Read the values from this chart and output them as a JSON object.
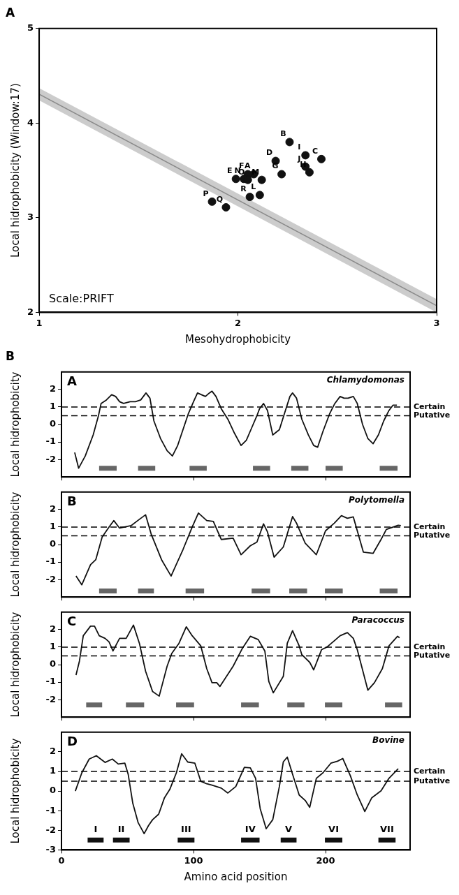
{
  "chart_data": [
    {
      "type": "scatter",
      "title": "A",
      "xlabel": "Mesohydrophobicity",
      "ylabel": "Local hidrophobicity (Window:17)",
      "xlim": [
        1,
        3
      ],
      "ylim": [
        2,
        5
      ],
      "xticks": [
        1,
        2,
        3
      ],
      "yticks": [
        2,
        3,
        4,
        5
      ],
      "series": [
        {
          "type": "scatter",
          "marker": "circle",
          "color": "#111111",
          "x": [
            2.08,
            2.26,
            2.42,
            2.19,
            1.99,
            2.05,
            2.22,
            2.36,
            2.34,
            2.34,
            2.11,
            2.12,
            2.03,
            2.05,
            1.87,
            1.94,
            2.06
          ],
          "values": [
            3.46,
            3.8,
            3.62,
            3.6,
            3.41,
            3.46,
            3.46,
            3.48,
            3.66,
            3.54,
            3.24,
            3.4,
            3.41,
            3.4,
            3.17,
            3.11,
            3.22
          ]
        },
        {
          "type": "line",
          "marker": "none",
          "color": "#8a8a8a",
          "x": [
            1,
            3
          ],
          "values": [
            4.305,
            2.07
          ],
          "lower": [
            4.24,
            2.0
          ],
          "upper": [
            4.37,
            2.14
          ]
        }
      ],
      "annotations": [
        "Scale:PRIFT",
        {
          "text": "A",
          "x": 2.08,
          "y": 3.46
        },
        {
          "text": "B",
          "x": 2.26,
          "y": 3.8
        },
        {
          "text": "C",
          "x": 2.42,
          "y": 3.62
        },
        {
          "text": "D",
          "x": 2.19,
          "y": 3.6
        },
        {
          "text": "E",
          "x": 1.99,
          "y": 3.41
        },
        {
          "text": "F",
          "x": 2.05,
          "y": 3.46
        },
        {
          "text": "G",
          "x": 2.22,
          "y": 3.46
        },
        {
          "text": "H",
          "x": 2.36,
          "y": 3.48
        },
        {
          "text": "I",
          "x": 2.34,
          "y": 3.66
        },
        {
          "text": "J",
          "x": 2.34,
          "y": 3.54
        },
        {
          "text": "L",
          "x": 2.11,
          "y": 3.24
        },
        {
          "text": "M",
          "x": 2.12,
          "y": 3.4
        },
        {
          "text": "N",
          "x": 2.03,
          "y": 3.41
        },
        {
          "text": "O",
          "x": 2.05,
          "y": 3.4
        },
        {
          "text": "P",
          "x": 1.87,
          "y": 3.17
        },
        {
          "text": "Q",
          "x": 1.94,
          "y": 3.11
        },
        {
          "text": "R",
          "x": 2.06,
          "y": 3.22
        }
      ]
    },
    {
      "type": "line",
      "title": "A",
      "subtitle": "Chlamydomonas",
      "ylabel": "Local hidrophobicity",
      "annotations": [
        "B"
      ],
      "xlim": [
        0,
        264
      ],
      "ylim": [
        -3,
        3
      ],
      "xticks": [
        0,
        100,
        200
      ],
      "yticks": [
        -2,
        -1,
        0,
        1,
        2
      ],
      "tick_labels": "y",
      "series": [
        {
          "color": "#111111",
          "x": [
            10,
            13,
            18,
            24,
            28,
            30,
            34,
            38,
            41,
            44,
            47,
            52,
            56,
            60,
            64,
            67,
            70,
            75,
            80,
            84,
            88,
            92,
            96,
            100,
            103,
            106,
            109,
            112,
            114,
            117,
            121,
            126,
            131,
            136,
            140,
            144,
            148,
            150,
            153,
            156,
            160,
            165,
            170,
            173,
            175,
            178,
            182,
            187,
            191,
            194,
            198,
            203,
            207,
            211,
            214,
            217,
            221,
            224,
            228,
            232,
            236,
            240,
            244,
            248,
            251,
            254
          ],
          "values": [
            -1.6,
            -2.5,
            -1.8,
            -0.6,
            0.5,
            1.2,
            1.4,
            1.7,
            1.6,
            1.3,
            1.2,
            1.3,
            1.3,
            1.4,
            1.8,
            1.5,
            0.2,
            -0.8,
            -1.5,
            -1.8,
            -1.2,
            -0.3,
            0.6,
            1.3,
            1.8,
            1.7,
            1.6,
            1.8,
            1.9,
            1.6,
            0.9,
            0.3,
            -0.5,
            -1.2,
            -0.9,
            -0.2,
            0.5,
            0.9,
            1.2,
            0.8,
            -0.6,
            -0.3,
            0.9,
            1.6,
            1.8,
            1.5,
            0.3,
            -0.6,
            -1.2,
            -1.3,
            -0.4,
            0.6,
            1.2,
            1.6,
            1.5,
            1.5,
            1.6,
            1.2,
            0,
            -0.8,
            -1.1,
            -0.6,
            0.2,
            0.8,
            1.1,
            1.1
          ]
        },
        {
          "color": "#666666",
          "x": [
            28.5,
            41.8,
            50,
            58,
            71,
            84,
            97,
            110,
            127,
            145,
            158,
            166,
            174,
            187,
            193,
            200,
            213,
            227,
            241,
            254.5
          ],
          "values": [
            -2.5,
            -2.5,
            null,
            -2.5,
            -2.5,
            null,
            -2.5,
            -2.5,
            null,
            -2.5,
            -2.5,
            null,
            -2.5,
            -2.5,
            null,
            -2.5,
            -2.5,
            null,
            -2.5,
            -2.5
          ]
        }
      ],
      "ref_lines": [
        {
          "axis": "y",
          "value": 1,
          "label": "Certain",
          "line_style": "dashed"
        },
        {
          "axis": "y",
          "value": 0.5,
          "label": "Putative",
          "line_style": "dashed"
        }
      ]
    },
    {
      "type": "line",
      "title": "B",
      "subtitle": "Polytomella",
      "ylabel": "Local hidrophobicity",
      "xlim": [
        0,
        264
      ],
      "ylim": [
        -3,
        3
      ],
      "xticks": [
        0,
        100,
        200
      ],
      "yticks": [
        -2,
        -1,
        0,
        1,
        2
      ],
      "tick_labels": "y",
      "series": [
        {
          "color": "#111111",
          "x": [
            11,
            15.4,
            22,
            26,
            30.8,
            36,
            39.6,
            44,
            52.7,
            59,
            63.7,
            68,
            76,
            83,
            92,
            99,
            103.7,
            110,
            115,
            121,
            130,
            136,
            143,
            148,
            153,
            156,
            161,
            168,
            175,
            178,
            184.6,
            193,
            200,
            206.6,
            212,
            216.5,
            221,
            228.6,
            236,
            242,
            246,
            255,
            257
          ],
          "values": [
            -1.8,
            -2.3,
            -1.15,
            -0.86,
            0.43,
            1.0,
            1.37,
            0.94,
            1.08,
            1.44,
            1.7,
            0.58,
            -0.9,
            -1.8,
            -0.29,
            1.0,
            1.8,
            1.37,
            1.32,
            0.29,
            0.36,
            -0.58,
            -0.07,
            0.14,
            1.18,
            0.72,
            -0.72,
            -0.14,
            1.6,
            1.22,
            0.07,
            -0.58,
            0.79,
            1.22,
            1.65,
            1.5,
            1.58,
            -0.43,
            -0.5,
            0.29,
            0.86,
            1.1,
            1.08
          ]
        },
        {
          "color": "#666666",
          "x": [
            28.5,
            41.8,
            50,
            58,
            70,
            82,
            94,
            108,
            126,
            144,
            158,
            165,
            172.5,
            186,
            193,
            199.5,
            213,
            227,
            241,
            254.5
          ],
          "values": [
            -2.65,
            -2.65,
            null,
            -2.65,
            -2.65,
            null,
            -2.65,
            -2.65,
            null,
            -2.65,
            -2.65,
            null,
            -2.65,
            -2.65,
            null,
            -2.65,
            -2.65,
            null,
            -2.65,
            -2.65
          ]
        }
      ],
      "ref_lines": [
        {
          "axis": "y",
          "value": 1,
          "label": "Certain",
          "line_style": "dashed"
        },
        {
          "axis": "y",
          "value": 0.5,
          "label": "Putative",
          "line_style": "dashed"
        }
      ]
    },
    {
      "type": "line",
      "title": "C",
      "subtitle": "Paracoccus",
      "ylabel": "Local hidrophobicity",
      "xlim": [
        0,
        264
      ],
      "ylim": [
        -3,
        3
      ],
      "xticks": [
        0,
        100,
        200
      ],
      "yticks": [
        -2,
        -1,
        0,
        1,
        2
      ],
      "tick_labels": "y",
      "series": [
        {
          "color": "#111111",
          "x": [
            11,
            13.6,
            16.5,
            22,
            25,
            28.6,
            33,
            36,
            39,
            44,
            49,
            54.5,
            59,
            63.7,
            69,
            74,
            80,
            83.5,
            89,
            94.5,
            99,
            105.5,
            110,
            114,
            117.6,
            120,
            130,
            137,
            143,
            149,
            154,
            157,
            160.4,
            168,
            171,
            175,
            180,
            182,
            188,
            191,
            197,
            201,
            206.6,
            211,
            216.5,
            221,
            224,
            232,
            237,
            243,
            248,
            254.5,
            256
          ],
          "values": [
            -0.6,
            0.2,
            1.65,
            2.2,
            2.2,
            1.65,
            1.5,
            1.3,
            0.78,
            1.5,
            1.5,
            2.26,
            1.22,
            -0.38,
            -1.54,
            -1.8,
            -0.09,
            0.64,
            1.22,
            2.16,
            1.65,
            1.07,
            -0.23,
            -1.03,
            -1.03,
            -1.25,
            -0.09,
            0.93,
            1.62,
            1.43,
            0.78,
            -0.96,
            -1.61,
            -0.67,
            1.22,
            1.94,
            1.07,
            0.57,
            0.13,
            -0.3,
            0.86,
            1.0,
            1.36,
            1.65,
            1.83,
            1.5,
            0.86,
            -1.46,
            -1.03,
            -0.23,
            1.07,
            1.62,
            1.54
          ]
        },
        {
          "color": "#666666",
          "x": [
            18.7,
            30.8,
            40,
            48.8,
            62.6,
            75,
            86.8,
            100.4,
            118,
            136,
            149.5,
            160,
            171,
            184,
            192,
            199.5,
            212.7,
            230,
            245,
            258
          ],
          "values": [
            -2.3,
            -2.3,
            null,
            -2.3,
            -2.3,
            null,
            -2.3,
            -2.3,
            null,
            -2.3,
            -2.3,
            null,
            -2.3,
            -2.3,
            null,
            -2.3,
            -2.3,
            null,
            -2.3,
            -2.3
          ]
        }
      ],
      "ref_lines": [
        {
          "axis": "y",
          "value": 1,
          "label": "Certain",
          "line_style": "dashed"
        },
        {
          "axis": "y",
          "value": 0.5,
          "label": "Putative",
          "line_style": "dashed"
        }
      ]
    },
    {
      "type": "line",
      "title": "D",
      "subtitle": "Bovine",
      "xlabel": "Amino acid position",
      "ylabel": "Local hidrophobicity",
      "xlim": [
        0,
        264
      ],
      "ylim": [
        -3,
        3
      ],
      "xticks": [
        0,
        100,
        200
      ],
      "yticks": [
        -3,
        -2,
        -1,
        0,
        1,
        2
      ],
      "series": [
        {
          "color": "#111111",
          "x": [
            10.5,
            15.4,
            21,
            26.4,
            33,
            38.5,
            43,
            48,
            50.5,
            54,
            58,
            62.6,
            66,
            69,
            73.6,
            78,
            82,
            87,
            91,
            95.6,
            101,
            105.5,
            110,
            114,
            121,
            126,
            132,
            138.5,
            143,
            147,
            150.5,
            155,
            160,
            165,
            168,
            171,
            175,
            180,
            184.6,
            188,
            193,
            198,
            204,
            209,
            213,
            218.7,
            224,
            229.7,
            235,
            242,
            248,
            255
          ],
          "values": [
            0,
            0.93,
            1.63,
            1.8,
            1.46,
            1.63,
            1.38,
            1.42,
            0.86,
            -0.62,
            -1.6,
            -2.17,
            -1.75,
            -1.46,
            -1.18,
            -0.34,
            0.08,
            0.93,
            1.9,
            1.48,
            1.42,
            0.5,
            0.37,
            0.3,
            0.15,
            -0.1,
            0.23,
            1.21,
            1.18,
            0.65,
            -0.9,
            -1.92,
            -1.46,
            0.23,
            1.49,
            1.73,
            0.86,
            -0.2,
            -0.48,
            -0.83,
            0.65,
            0.93,
            1.42,
            1.52,
            1.66,
            0.79,
            -0.2,
            -1.04,
            -0.34,
            0.01,
            0.65,
            1.14
          ]
        },
        {
          "color": "#111111",
          "x": [
            19.8,
            31.9,
            35,
            39,
            51.6,
            70,
            88,
            100.7,
            118,
            136,
            150,
            158,
            166,
            178,
            190,
            199.5,
            212.7,
            226,
            240,
            253
          ],
          "values": [
            -2.5,
            -2.5,
            null,
            -2.5,
            -2.5,
            null,
            -2.5,
            -2.5,
            null,
            -2.5,
            -2.5,
            null,
            -2.5,
            -2.5,
            null,
            -2.5,
            -2.5,
            null,
            -2.5,
            -2.5
          ]
        }
      ],
      "annotations": [
        {
          "text": "I",
          "x": 25.85,
          "y": -2.5
        },
        {
          "text": "II",
          "x": 45.3,
          "y": -2.5
        },
        {
          "text": "III",
          "x": 94.35,
          "y": -2.5
        },
        {
          "text": "IV",
          "x": 143,
          "y": -2.5
        },
        {
          "text": "V",
          "x": 172,
          "y": -2.5
        },
        {
          "text": "VI",
          "x": 206.1,
          "y": -2.5
        },
        {
          "text": "VII",
          "x": 246.5,
          "y": -2.5
        }
      ],
      "ref_lines": [
        {
          "axis": "y",
          "value": 1,
          "label": "Certain",
          "line_style": "dashed"
        },
        {
          "axis": "y",
          "value": 0.5,
          "label": "Putative",
          "line_style": "dashed"
        }
      ]
    }
  ]
}
